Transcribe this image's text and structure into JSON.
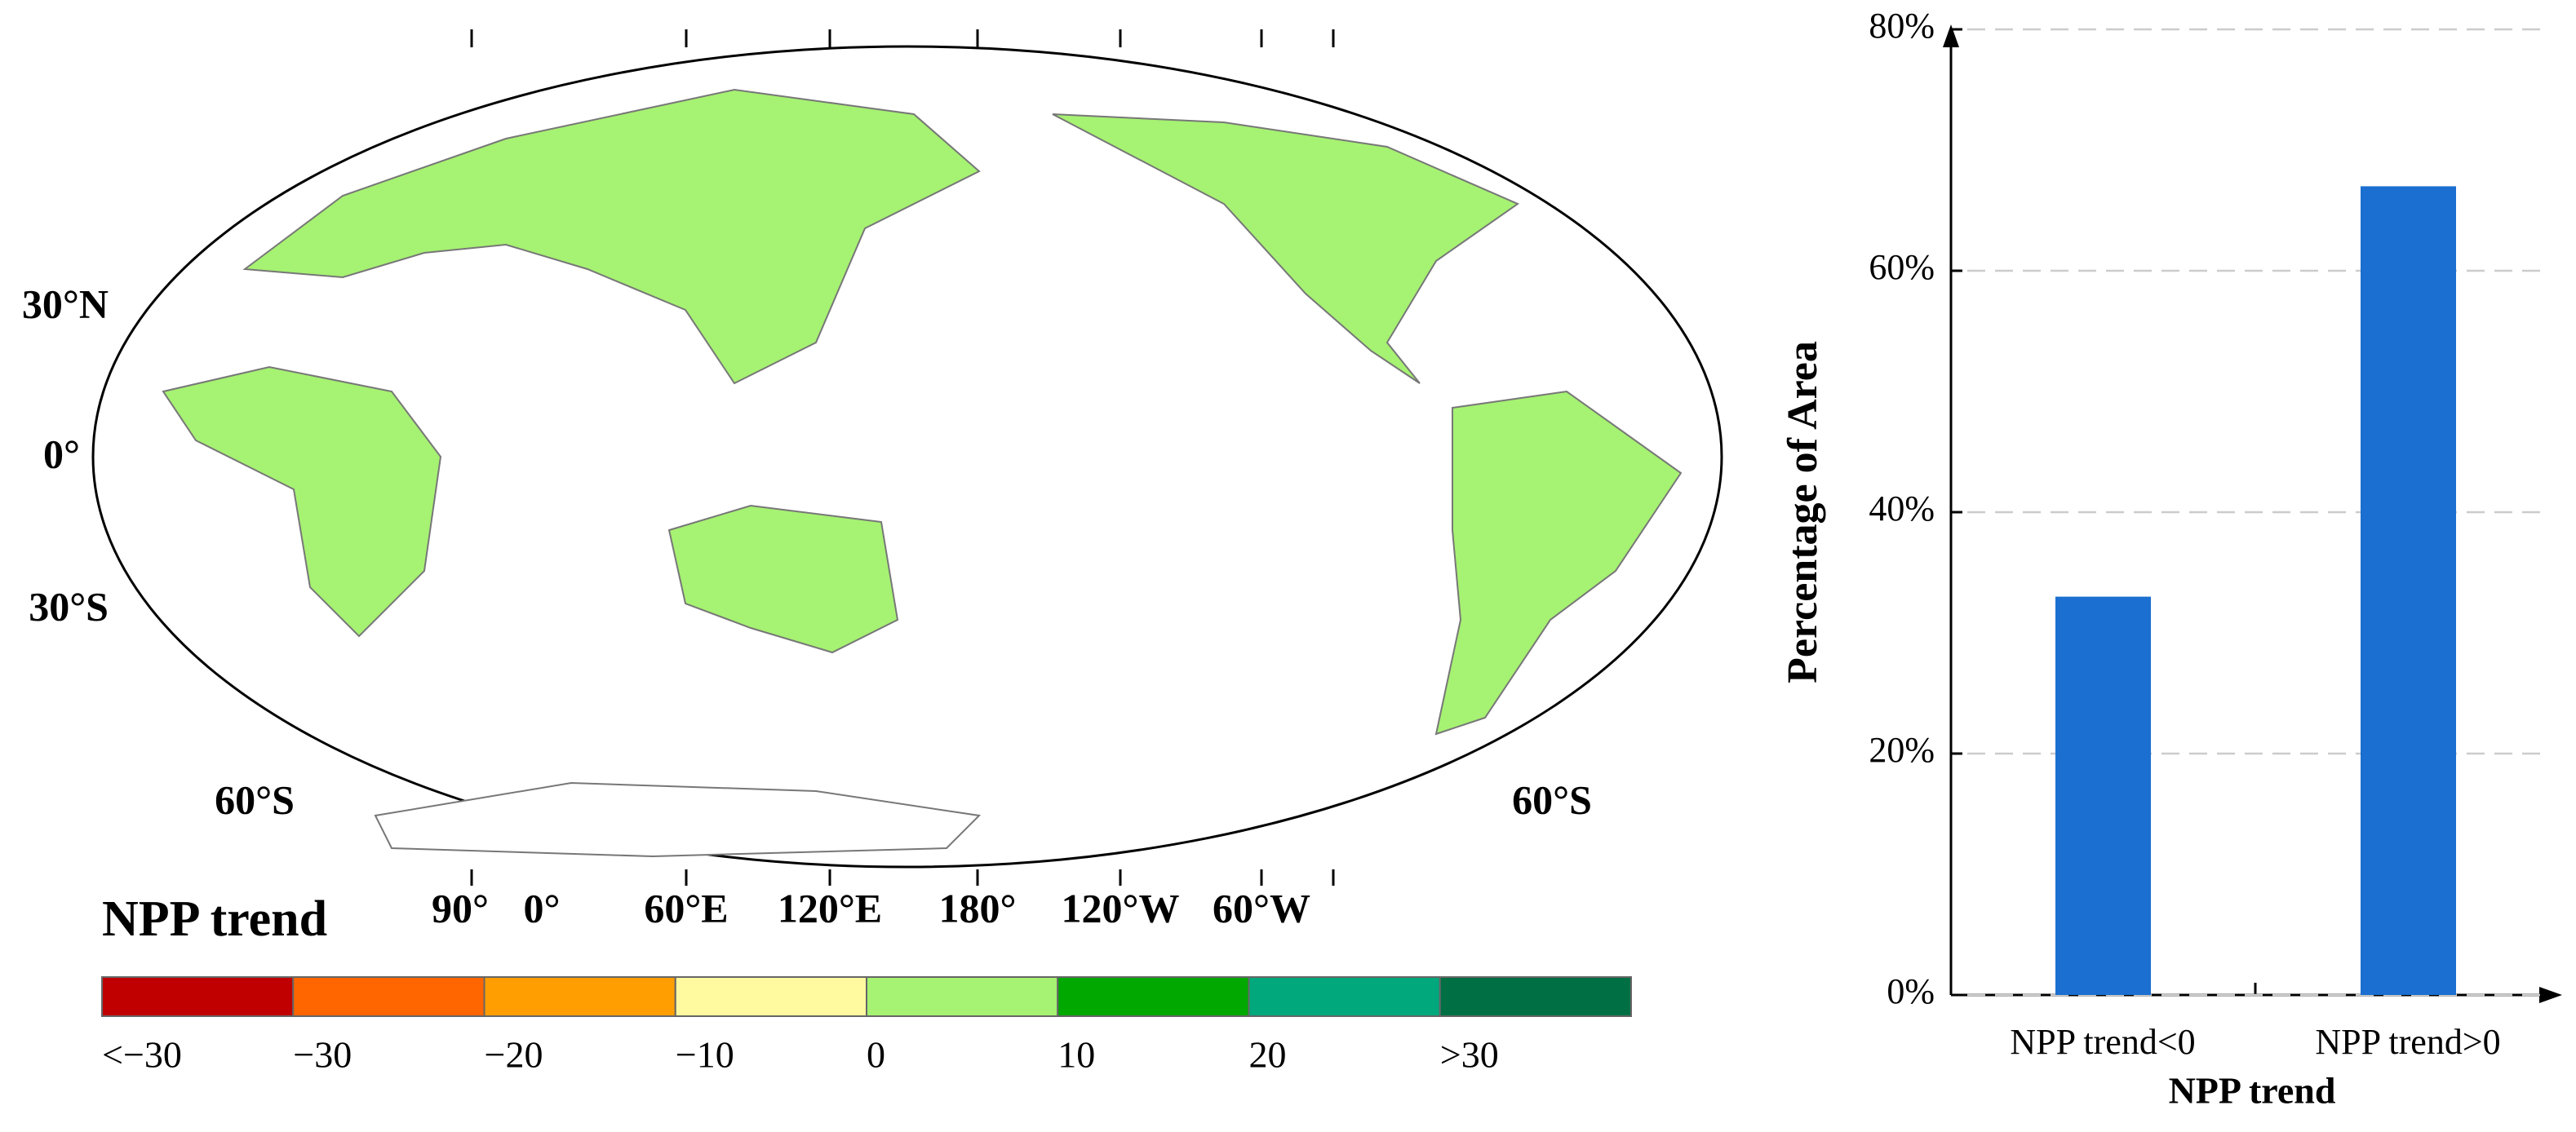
{
  "chart_data": [
    {
      "type": "map",
      "legend": {
        "title": "NPP trend",
        "colors": [
          "#c00000",
          "#ff6600",
          "#ff9e00",
          "#fffaa0",
          "#a6f272",
          "#00a800",
          "#00a87c",
          "#007044"
        ],
        "labels": [
          "<−30",
          "−30",
          "−20",
          "−10",
          "0",
          "10",
          "20",
          ">30"
        ]
      },
      "lat_labels": [
        "30°N",
        "0°",
        "30°S",
        "60°S",
        "60°S"
      ],
      "lon_labels": [
        "90°",
        "0°",
        "60°E",
        "120°E",
        "180°",
        "120°W",
        "60°W"
      ]
    },
    {
      "type": "bar",
      "categories": [
        "NPP trend<0",
        "NPP trend>0"
      ],
      "values": [
        33.0,
        67.0
      ],
      "color": "#1b6fd0",
      "xlabel": "NPP trend",
      "ylabel": "Percentage of Area",
      "ylim": [
        0,
        80
      ],
      "yticks": [
        {
          "value": 0,
          "label": "0%"
        },
        {
          "value": 20,
          "label": "20%"
        },
        {
          "value": 40,
          "label": "40%"
        },
        {
          "value": 60,
          "label": "60%"
        },
        {
          "value": 80,
          "label": "80%"
        }
      ],
      "grid": true
    }
  ]
}
